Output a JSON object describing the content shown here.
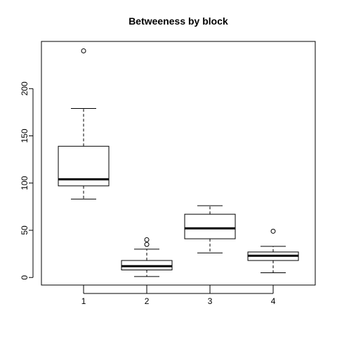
{
  "chart_data": {
    "type": "boxplot",
    "title": "Betweeness by block",
    "xlabel": "",
    "ylabel": "",
    "categories": [
      "1",
      "2",
      "3",
      "4"
    ],
    "ylim": [
      -8,
      250
    ],
    "y_ticks": [
      0,
      50,
      100,
      150,
      200
    ],
    "grid": false,
    "legend": "none",
    "boxes": [
      {
        "category": "1",
        "whisker_low": 83,
        "q1": 97,
        "median": 104,
        "q3": 139,
        "whisker_high": 179,
        "outliers": [
          240
        ]
      },
      {
        "category": "2",
        "whisker_low": 1,
        "q1": 8,
        "median": 12,
        "q3": 18,
        "whisker_high": 30,
        "outliers": [
          35,
          40
        ]
      },
      {
        "category": "3",
        "whisker_low": 26,
        "q1": 41,
        "median": 52,
        "q3": 67,
        "whisker_high": 76,
        "outliers": []
      },
      {
        "category": "4",
        "whisker_low": 5,
        "q1": 18,
        "median": 23,
        "q3": 27,
        "whisker_high": 33,
        "outliers": [
          49
        ]
      }
    ]
  }
}
